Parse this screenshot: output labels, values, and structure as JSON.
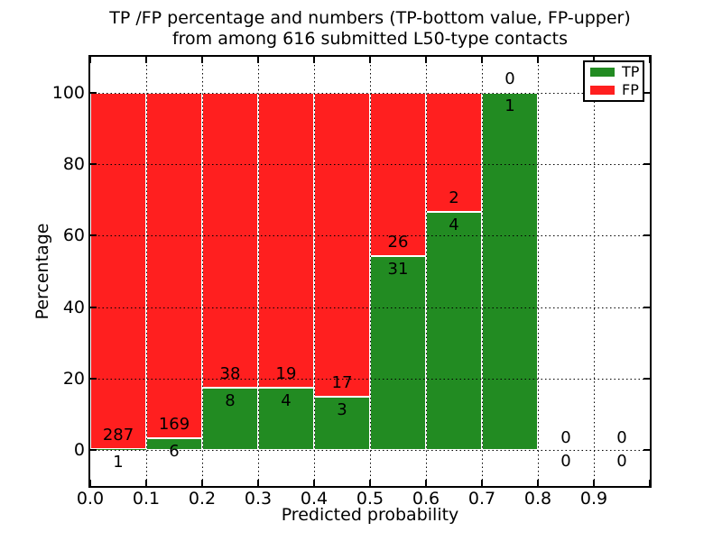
{
  "chart_data": {
    "type": "bar",
    "stacked": true,
    "title_line1": "TP /FP percentage and numbers (TP-bottom value, FP-upper)",
    "title_line2": "from among 616 submitted L50-type contacts",
    "xlabel": "Predicted probability",
    "ylabel": "Percentage",
    "xlim": [
      0.0,
      1.0
    ],
    "ylim": [
      -10,
      110
    ],
    "grid": true,
    "gridstyle": "dotted",
    "xticks": [
      "0.0",
      "0.1",
      "0.2",
      "0.3",
      "0.4",
      "0.5",
      "0.6",
      "0.7",
      "0.8",
      "0.9"
    ],
    "yticks": [
      "0",
      "20",
      "40",
      "60",
      "80",
      "100"
    ],
    "legend_position": "upper right",
    "legend": [
      {
        "label": "TP",
        "color": "#228b22"
      },
      {
        "label": "FP",
        "color": "#ff1f1f"
      }
    ],
    "bins": [
      {
        "range": "0.0-0.1",
        "x0": 0.0,
        "x1": 0.1,
        "tp": 1,
        "fp": 287,
        "tp_pct": 0.35
      },
      {
        "range": "0.1-0.2",
        "x0": 0.1,
        "x1": 0.2,
        "tp": 6,
        "fp": 169,
        "tp_pct": 3.43
      },
      {
        "range": "0.2-0.3",
        "x0": 0.2,
        "x1": 0.3,
        "tp": 8,
        "fp": 38,
        "tp_pct": 17.39
      },
      {
        "range": "0.3-0.4",
        "x0": 0.3,
        "x1": 0.4,
        "tp": 4,
        "fp": 19,
        "tp_pct": 17.39
      },
      {
        "range": "0.4-0.5",
        "x0": 0.4,
        "x1": 0.5,
        "tp": 3,
        "fp": 17,
        "tp_pct": 15.0
      },
      {
        "range": "0.5-0.6",
        "x0": 0.5,
        "x1": 0.6,
        "tp": 31,
        "fp": 26,
        "tp_pct": 54.39
      },
      {
        "range": "0.6-0.7",
        "x0": 0.6,
        "x1": 0.7,
        "tp": 4,
        "fp": 2,
        "tp_pct": 66.67
      },
      {
        "range": "0.7-0.8",
        "x0": 0.7,
        "x1": 0.8,
        "tp": 1,
        "fp": 0,
        "tp_pct": 100.0
      },
      {
        "range": "0.8-0.9",
        "x0": 0.8,
        "x1": 0.9,
        "tp": 0,
        "fp": 0,
        "tp_pct": null
      },
      {
        "range": "0.9-1.0",
        "x0": 0.9,
        "x1": 1.0,
        "tp": 0,
        "fp": 0,
        "tp_pct": null
      }
    ]
  }
}
